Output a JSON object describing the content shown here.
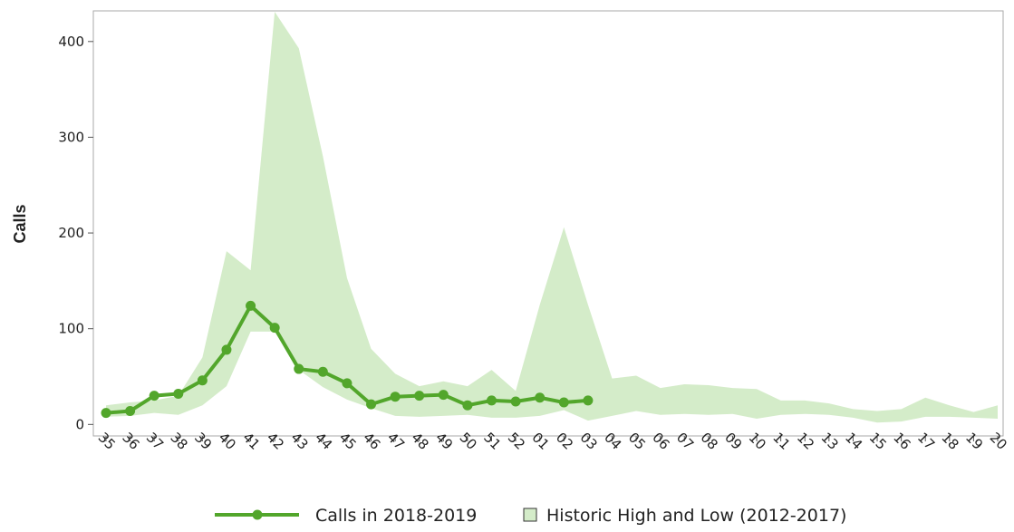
{
  "chart_data": {
    "type": "line-band",
    "y_label": "Calls",
    "categories": [
      "35",
      "36",
      "37",
      "38",
      "39",
      "40",
      "41",
      "42",
      "43",
      "44",
      "45",
      "46",
      "47",
      "48",
      "49",
      "50",
      "51",
      "52",
      "01",
      "02",
      "03",
      "04",
      "05",
      "06",
      "07",
      "08",
      "09",
      "10",
      "11",
      "12",
      "13",
      "14",
      "15",
      "16",
      "17",
      "18",
      "19",
      "20"
    ],
    "series": [
      {
        "name": "Calls in 2018-2019",
        "color": "#52a62b",
        "values": [
          12,
          14,
          30,
          32,
          46,
          78,
          124,
          101,
          58,
          55,
          43,
          21,
          29,
          30,
          31,
          20,
          25,
          24,
          28,
          23,
          25,
          null,
          null,
          null,
          null,
          null,
          null,
          null,
          null,
          null,
          null,
          null,
          null,
          null,
          null,
          null,
          null,
          null
        ]
      },
      {
        "name": "Historic High and Low (2012-2017)",
        "color": "#d4ecc9",
        "high": [
          20,
          23,
          25,
          30,
          70,
          181,
          161,
          431,
          393,
          280,
          153,
          79,
          53,
          40,
          45,
          40,
          57,
          35,
          125,
          206,
          125,
          48,
          51,
          38,
          42,
          41,
          38,
          37,
          25,
          25,
          22,
          16,
          14,
          16,
          28,
          20,
          13,
          20
        ],
        "low": [
          8,
          9,
          12,
          10,
          20,
          40,
          97,
          97,
          57,
          39,
          26,
          17,
          9,
          8,
          9,
          10,
          7,
          7,
          9,
          15,
          4,
          9,
          14,
          10,
          11,
          10,
          11,
          6,
          10,
          11,
          10,
          7,
          2,
          3,
          8,
          8,
          7,
          6
        ]
      }
    ],
    "ylim": [
      -12,
      432
    ],
    "yticks": [
      0,
      100,
      200,
      300,
      400
    ]
  }
}
